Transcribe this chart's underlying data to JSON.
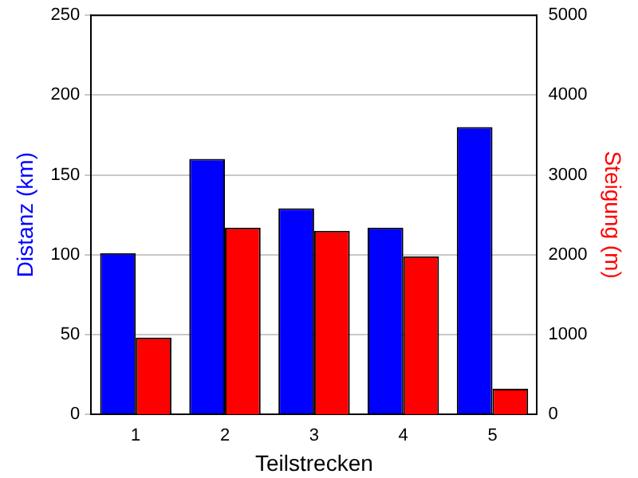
{
  "chart_data": {
    "type": "bar",
    "xlabel": "Teilstrecken",
    "ylabel": "Distanz (km)",
    "y2label": "Steigung (m)",
    "categories": [
      "1",
      "2",
      "3",
      "4",
      "5"
    ],
    "series": [
      {
        "color": "#0000ff",
        "values": [
          101,
          160,
          129,
          117,
          180
        ]
      },
      {
        "color": "#ff0000",
        "values": [
          960,
          2340,
          2300,
          1980,
          320
        ],
        "axis": "y2"
      }
    ],
    "ylim": [
      0,
      250
    ],
    "yticks": [
      0,
      50,
      100,
      150,
      200,
      250
    ],
    "y2lim": [
      0,
      5000
    ],
    "y2ticks": [
      0,
      1000,
      2000,
      3000,
      4000,
      5000
    ],
    "grid": "y",
    "legend": false
  }
}
